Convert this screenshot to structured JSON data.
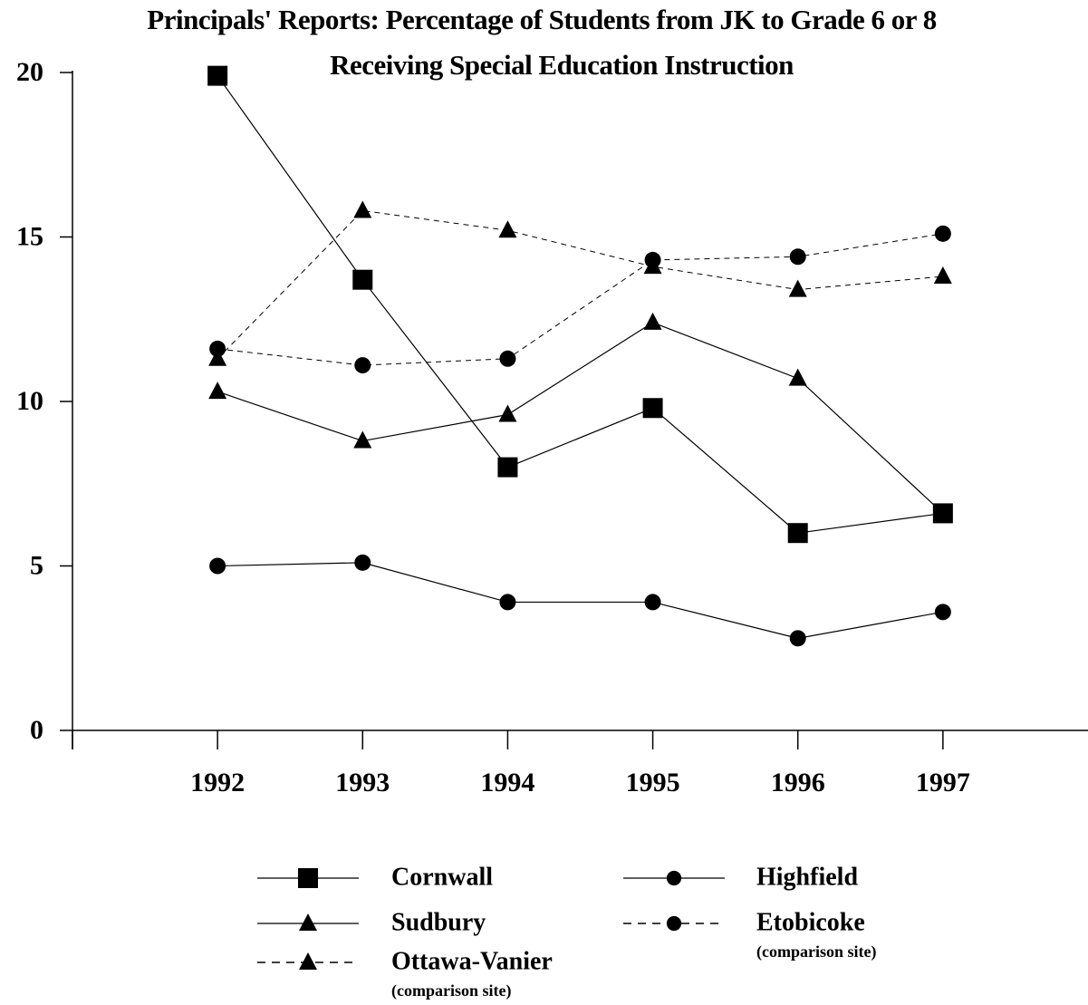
{
  "chart_data": {
    "type": "line",
    "title": [
      "Principals' Reports:  Percentage of Students from JK to Grade 6 or 8",
      "Receiving Special Education Instruction"
    ],
    "x": [
      1992,
      1993,
      1994,
      1995,
      1996,
      1997
    ],
    "xlim": [
      1991,
      1998
    ],
    "xticks": [
      1992,
      1993,
      1994,
      1995,
      1996,
      1997
    ],
    "ylim": [
      0,
      20
    ],
    "yticks": [
      0,
      5,
      10,
      15,
      20
    ],
    "series": [
      {
        "name": "Cornwall",
        "color": "#000000",
        "marker": "square",
        "dashed": false,
        "values": [
          19.9,
          13.7,
          8.0,
          9.8,
          6.0,
          6.6
        ]
      },
      {
        "name": "Sudbury",
        "color": "#000000",
        "marker": "triangle",
        "dashed": false,
        "values": [
          10.3,
          8.8,
          9.6,
          12.4,
          10.7,
          6.6
        ]
      },
      {
        "name": "Ottawa-Vanier",
        "note": "(comparison site)",
        "color": "#000000",
        "marker": "triangle",
        "dashed": true,
        "values": [
          11.3,
          15.8,
          15.2,
          14.1,
          13.4,
          13.8
        ]
      },
      {
        "name": "Highfield",
        "color": "#000000",
        "marker": "circle",
        "dashed": false,
        "values": [
          5.0,
          5.1,
          3.9,
          3.9,
          2.8,
          3.6
        ]
      },
      {
        "name": "Etobicoke",
        "note": "(comparison site)",
        "color": "#000000",
        "marker": "circle",
        "dashed": true,
        "values": [
          11.6,
          11.1,
          11.3,
          14.3,
          14.4,
          15.1
        ]
      }
    ]
  }
}
